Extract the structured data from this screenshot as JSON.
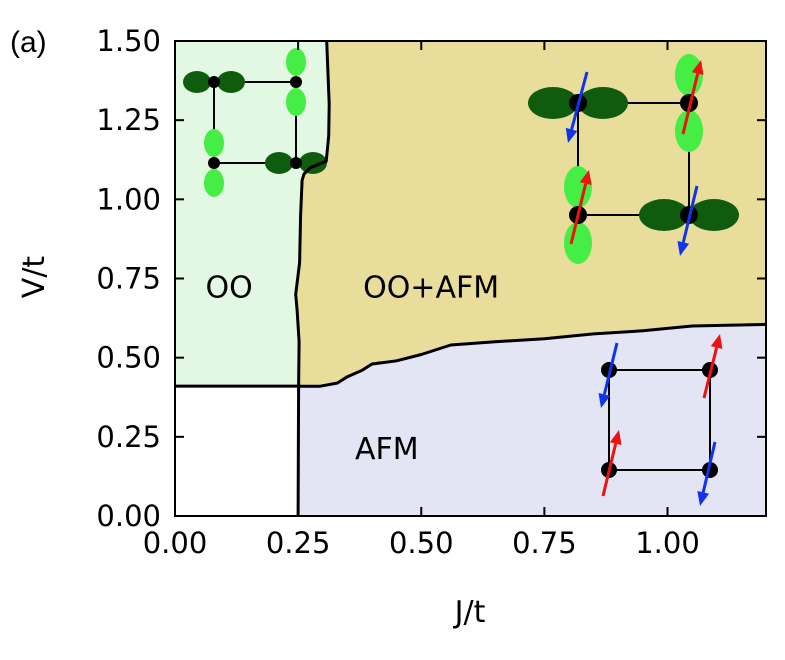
{
  "panel_label": "(a)",
  "chart_data": {
    "type": "phase-diagram",
    "xlabel": "J/t",
    "ylabel": "V/t",
    "xlim": [
      0.0,
      1.2
    ],
    "ylim": [
      0.0,
      1.5
    ],
    "xticks": [
      "0.00",
      "0.25",
      "0.50",
      "0.75",
      "1.00"
    ],
    "xtick_values": [
      0.0,
      0.25,
      0.5,
      0.75,
      1.0
    ],
    "yticks": [
      "0.00",
      "0.25",
      "0.50",
      "0.75",
      "1.00",
      "1.25",
      "1.50"
    ],
    "ytick_values": [
      0.0,
      0.25,
      0.5,
      0.75,
      1.0,
      1.25,
      1.5
    ],
    "colors": {
      "oo": "#e3f8e3",
      "oo_afm": "#e8dd9a",
      "afm": "#e3e4f4",
      "none": "#ffffff",
      "orbital_dark": "#0f5c0f",
      "orbital_light": "#44ee44",
      "spin_up": "#ee1111",
      "spin_down": "#1133ee"
    },
    "regions": [
      {
        "key": "oo",
        "label": "OO",
        "label_at": [
          0.11,
          0.69
        ]
      },
      {
        "key": "oo_afm",
        "label": "OO+AFM",
        "label_at": [
          0.52,
          0.69
        ]
      },
      {
        "key": "afm",
        "label": "AFM",
        "label_at": [
          0.43,
          0.18
        ]
      }
    ],
    "boundaries": {
      "oo_vs_none_V": 0.41,
      "vertical_J": [
        [
          0.25,
          0.0
        ],
        [
          0.251,
          0.41
        ],
        [
          0.252,
          0.55
        ],
        [
          0.248,
          0.65
        ],
        [
          0.245,
          0.7
        ],
        [
          0.253,
          0.8
        ],
        [
          0.255,
          0.95
        ],
        [
          0.258,
          1.06
        ],
        [
          0.262,
          1.08
        ],
        [
          0.275,
          1.1
        ],
        [
          0.307,
          1.12
        ],
        [
          0.312,
          1.2
        ],
        [
          0.313,
          1.3
        ],
        [
          0.31,
          1.42
        ],
        [
          0.308,
          1.5
        ]
      ],
      "afm_upper_V": [
        [
          0.25,
          0.41
        ],
        [
          0.295,
          0.41
        ],
        [
          0.33,
          0.42
        ],
        [
          0.35,
          0.44
        ],
        [
          0.38,
          0.46
        ],
        [
          0.4,
          0.48
        ],
        [
          0.45,
          0.49
        ],
        [
          0.5,
          0.51
        ],
        [
          0.56,
          0.54
        ],
        [
          0.65,
          0.55
        ],
        [
          0.75,
          0.56
        ],
        [
          0.85,
          0.575
        ],
        [
          0.95,
          0.585
        ],
        [
          1.05,
          0.6
        ],
        [
          1.2,
          0.605
        ]
      ]
    }
  }
}
